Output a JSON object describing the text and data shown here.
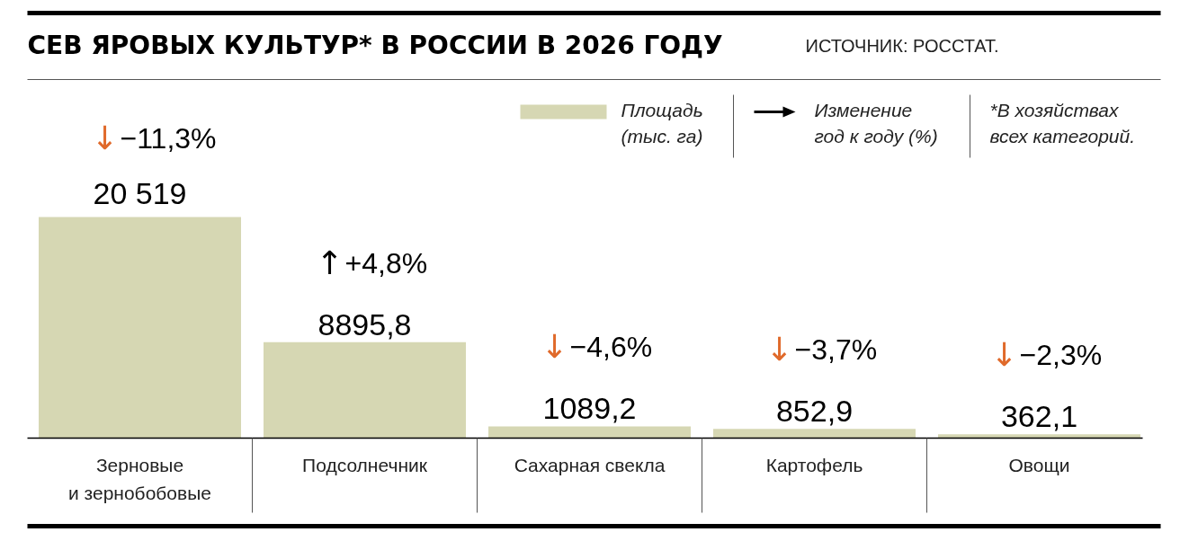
{
  "chart_data": {
    "type": "bar",
    "title": "СЕВ ЯРОВЫХ КУЛЬТУР* В РОССИИ В 2026 ГОДУ",
    "categories": [
      "Зерновые\nи зернобобовые",
      "Подсолнечник",
      "Сахарная свекла",
      "Картофель",
      "Овощи"
    ],
    "series": [
      {
        "name": "Площадь\n(тыс. га)",
        "color": "#d6d7b3",
        "values": [
          20519,
          8895.8,
          1089.2,
          852.9,
          362.1
        ],
        "value_labels": [
          "20 519",
          "8895,8",
          "1089,2",
          "852,9",
          "362,1"
        ]
      }
    ],
    "annotations": [
      "↓−11,3%",
      "↑+4,8%",
      "↓−4,6%",
      "↓−3,7%",
      "↓−2,3%",
      "ИСТОЧНИК: РОССТАТ.",
      "Изменение\nгод к году (%)",
      "*В хозяйствах\nвсех категорий."
    ],
    "legend": "top right",
    "grid": false,
    "tick_labels": false
  }
}
